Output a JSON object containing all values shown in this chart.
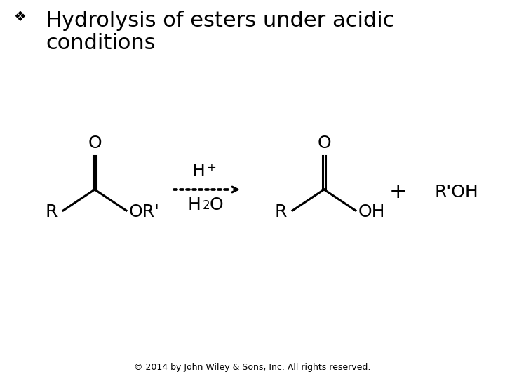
{
  "title_line1": "Hydrolysis of esters under acidic",
  "title_line2": "conditions",
  "bullet": "❖",
  "title_fontsize": 22,
  "chem_fontsize": 18,
  "sub_fontsize": 13,
  "sup_fontsize": 13,
  "copyright": "© 2014 by John Wiley & Sons, Inc. All rights reserved.",
  "copyright_fontsize": 9,
  "background_color": "#ffffff",
  "text_color": "#000000",
  "fig_width": 7.2,
  "fig_height": 5.4
}
